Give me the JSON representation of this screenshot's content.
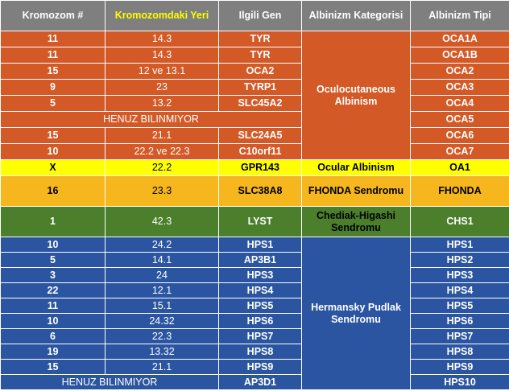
{
  "headers": {
    "chromosome": "Kromozom #",
    "location": "Kromozomdaki Yeri",
    "gene": "Ilgili Gen",
    "category": "Albinizm Kategorisi",
    "type": "Albinizm Tipi"
  },
  "groups": {
    "oca": "Oculocutaneous Albinism",
    "hps": "Hermansky Pudlak Sendromu"
  },
  "colors": {
    "header": "#7f7f7f",
    "oca": "#d35a27",
    "oa": "#ffff00",
    "fhonda": "#f5b61e",
    "chs": "#4c7f2c",
    "hps": "#2b55a0"
  },
  "rows": [
    {
      "chr": "11",
      "loc": "14.3",
      "gene": "TYR",
      "type": "OCA1A"
    },
    {
      "chr": "11",
      "loc": "14.3",
      "gene": "TYR",
      "type": "OCA1B"
    },
    {
      "chr": "15",
      "loc": "12 ve 13.1",
      "gene": "OCA2",
      "type": "OCA2"
    },
    {
      "chr": "9",
      "loc": "23",
      "gene": "TYRP1",
      "type": "OCA3"
    },
    {
      "chr": "5",
      "loc": "13.2",
      "gene": "SLC45A2",
      "type": "OCA4"
    },
    {
      "merged": "HENUZ BILINMIYOR",
      "type": "OCA5"
    },
    {
      "chr": "15",
      "loc": "21.1",
      "gene": "SLC24A5",
      "type": "OCA6"
    },
    {
      "chr": "10",
      "loc": "22.2 ve 22.3",
      "gene": "C10orf11",
      "type": "OCA7"
    },
    {
      "chr": "X",
      "loc": "22.2",
      "gene": "GPR143",
      "category": "Ocular Albinism",
      "type": "OA1"
    },
    {
      "chr": "16",
      "loc": "23.3",
      "gene": "SLC38A8",
      "category": "FHONDA Sendromu",
      "type": "FHONDA"
    },
    {
      "chr": "1",
      "loc": "42.3",
      "gene": "LYST",
      "category": "Chediak-Higashi Sendromu",
      "type": "CHS1"
    },
    {
      "chr": "10",
      "loc": "24.2",
      "gene": "HPS1",
      "type": "HPS1"
    },
    {
      "chr": "5",
      "loc": "14.1",
      "gene": "AP3B1",
      "type": "HPS2"
    },
    {
      "chr": "3",
      "loc": "24",
      "gene": "HPS3",
      "type": "HPS3"
    },
    {
      "chr": "22",
      "loc": "12.1",
      "gene": "HPS4",
      "type": "HPS4"
    },
    {
      "chr": "11",
      "loc": "15.1",
      "gene": "HPS5",
      "type": "HPS5"
    },
    {
      "chr": "10",
      "loc": "24.32",
      "gene": "HPS6",
      "type": "HPS6"
    },
    {
      "chr": "6",
      "loc": "22.3",
      "gene": "HPS7",
      "type": "HPS7"
    },
    {
      "chr": "19",
      "loc": "13.32",
      "gene": "HPS8",
      "type": "HPS8"
    },
    {
      "chr": "15",
      "loc": "21.1",
      "gene": "HPS9",
      "type": "HPS9"
    },
    {
      "merged2": "HENUZ BILINMIYOR",
      "gene": "AP3D1",
      "type": "HPS10"
    }
  ]
}
